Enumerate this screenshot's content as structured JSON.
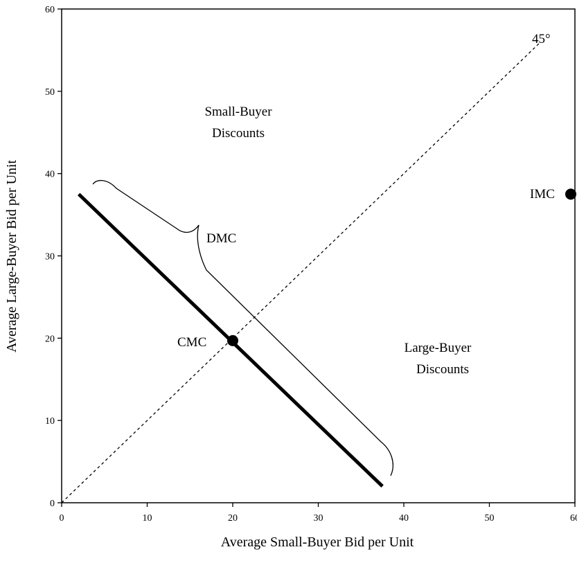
{
  "chart_data": {
    "type": "line",
    "xlabel": "Average Small-Buyer Bid per Unit",
    "ylabel": "Average Large-Buyer Bid per Unit",
    "xlim": [
      0,
      60
    ],
    "ylim": [
      0,
      60
    ],
    "xticks": [
      0,
      10,
      20,
      30,
      40,
      50,
      60
    ],
    "yticks": [
      0,
      10,
      20,
      30,
      40,
      50,
      60
    ],
    "grid": false,
    "series": [
      {
        "name": "",
        "style": "dashed",
        "points": [
          [
            0,
            0
          ],
          [
            56,
            56
          ]
        ]
      },
      {
        "name": "",
        "style": "thick",
        "points": [
          [
            2,
            37.5
          ],
          [
            37.5,
            2
          ]
        ]
      }
    ],
    "points": [
      {
        "label": "CMC",
        "x": 20,
        "y": 19.7
      },
      {
        "label": "IMC",
        "x": 60.5,
        "y": 37.5
      }
    ],
    "annotations": {
      "angle": "45°",
      "upper_region": [
        "Small-Buyer",
        "Discounts"
      ],
      "lower_region": [
        "Large-Buyer",
        "Discounts"
      ],
      "brace": "DMC"
    }
  }
}
